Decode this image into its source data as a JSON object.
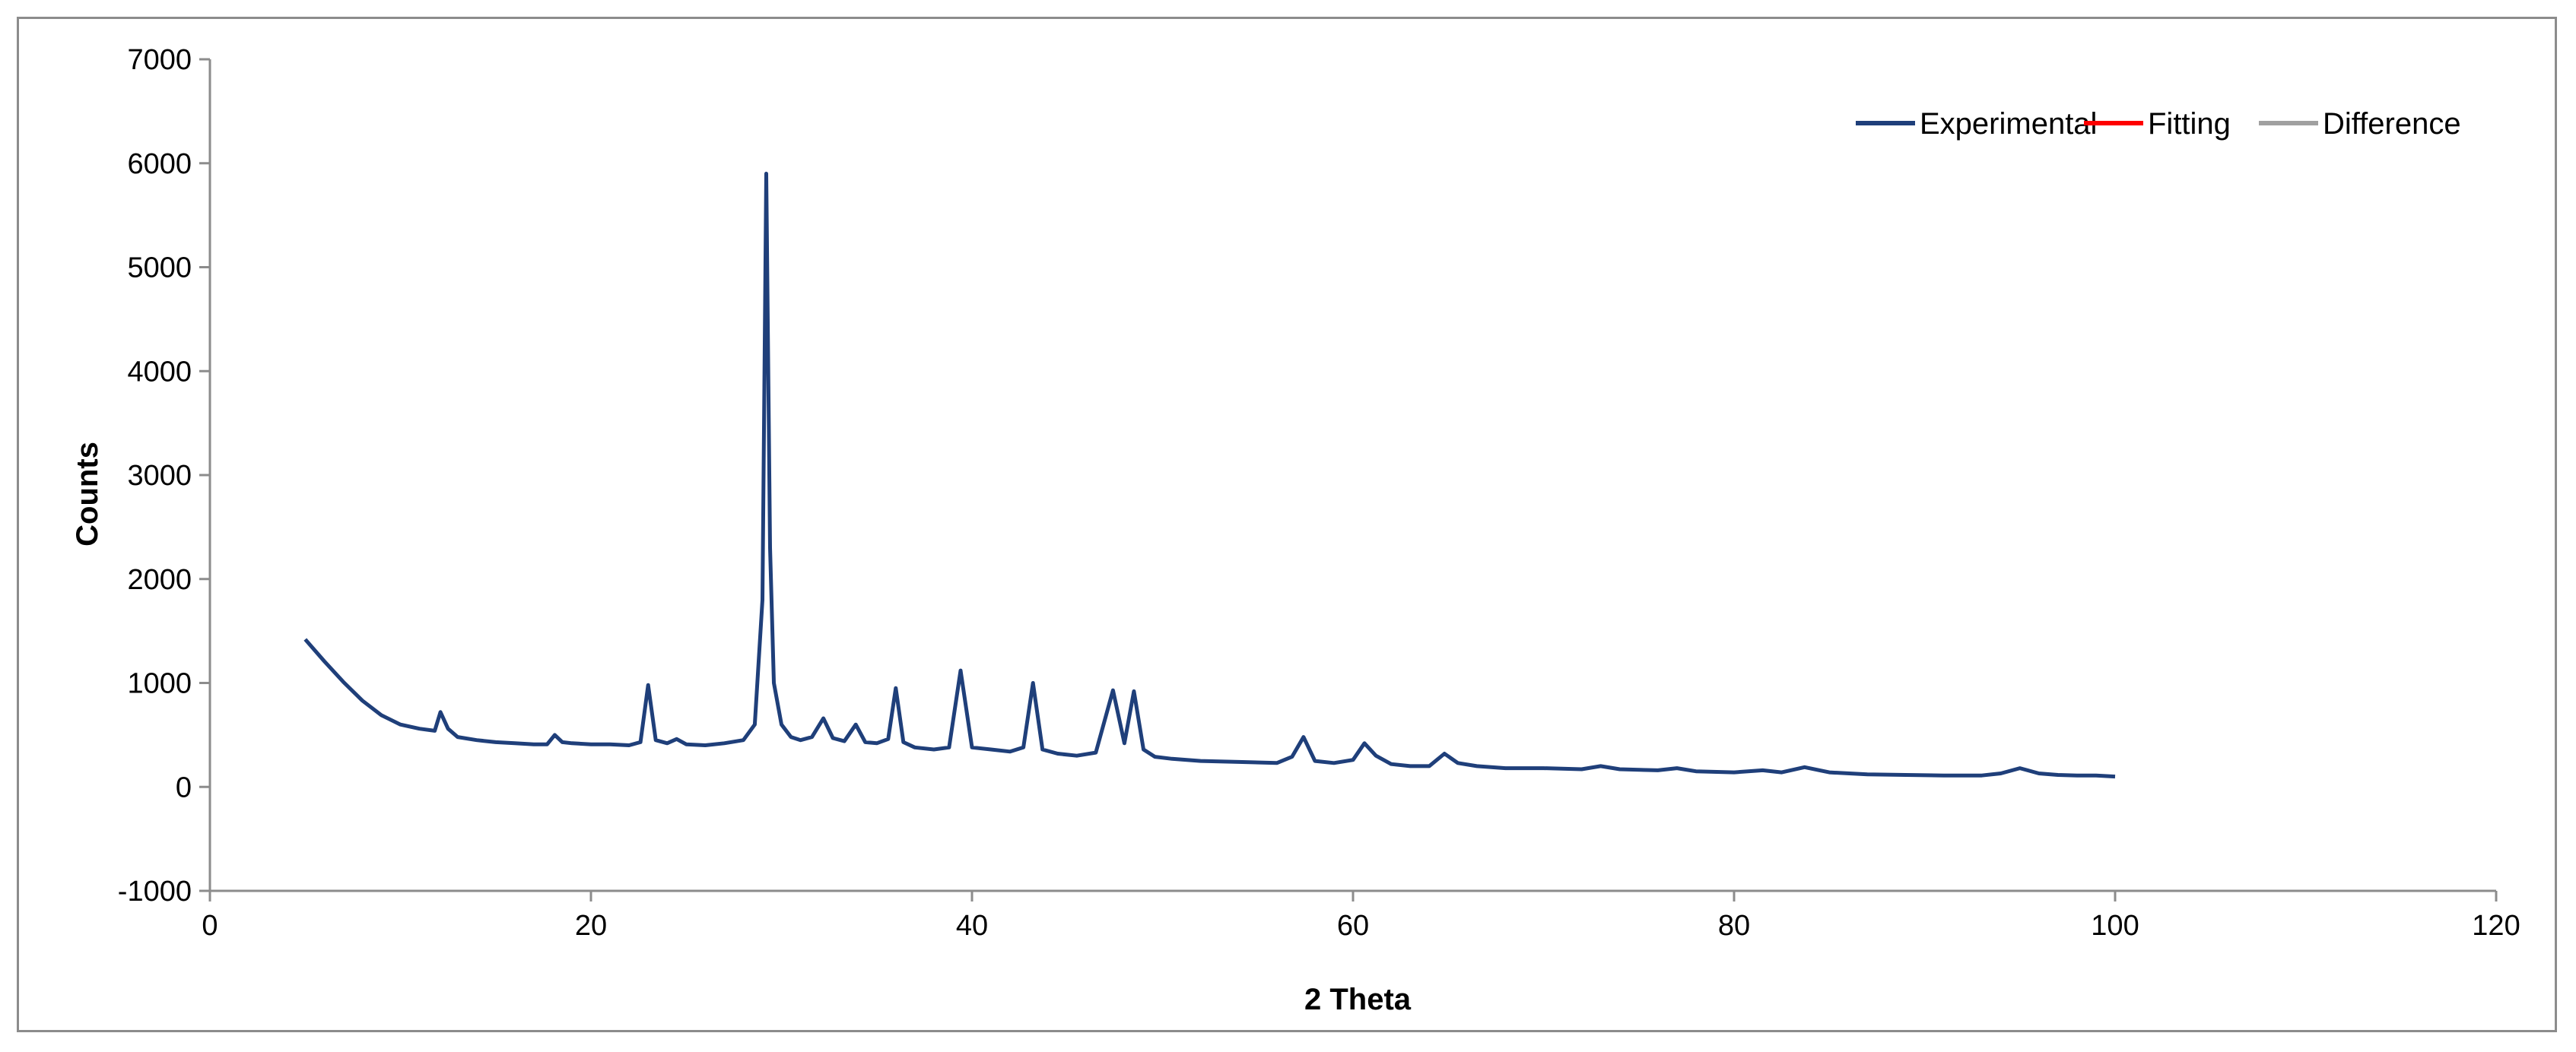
{
  "chart_data": {
    "type": "line",
    "title": "",
    "xlabel": "2 Theta",
    "ylabel": "Counts",
    "xlim": [
      0,
      120
    ],
    "ylim": [
      -1000,
      7000
    ],
    "x_ticks": [
      0,
      20,
      40,
      60,
      80,
      100,
      120
    ],
    "y_ticks": [
      -1000,
      0,
      1000,
      2000,
      3000,
      4000,
      5000,
      6000,
      7000
    ],
    "grid": false,
    "legend_position": "top-right",
    "series": [
      {
        "name": "Experimental",
        "color": "#1f3f7a",
        "x": [
          5.0,
          6.0,
          7.0,
          8.0,
          9.0,
          10.0,
          11.0,
          11.8,
          12.1,
          12.5,
          13.0,
          14.0,
          15.0,
          16.0,
          17.0,
          17.7,
          18.1,
          18.5,
          19.0,
          20.0,
          21.0,
          22.0,
          22.6,
          23.0,
          23.4,
          24.0,
          24.5,
          25.0,
          26.0,
          27.0,
          28.0,
          28.6,
          29.0,
          29.2,
          29.4,
          29.6,
          30.0,
          30.5,
          31.0,
          31.6,
          32.2,
          32.7,
          33.3,
          33.9,
          34.4,
          35.0,
          35.6,
          36.0,
          36.4,
          37.0,
          38.0,
          38.8,
          39.4,
          40.0,
          41.0,
          42.0,
          42.7,
          43.2,
          43.7,
          44.5,
          45.5,
          46.5,
          47.4,
          48.0,
          48.5,
          49.0,
          49.6,
          50.5,
          52.0,
          54.0,
          56.0,
          56.8,
          57.4,
          58.0,
          59.0,
          60.0,
          60.6,
          61.2,
          62.0,
          63.0,
          64.0,
          64.8,
          65.5,
          66.5,
          68.0,
          70.0,
          72.0,
          73.0,
          74.0,
          76.0,
          77.0,
          78.0,
          80.0,
          81.5,
          82.5,
          83.7,
          85.0,
          87.0,
          89.0,
          91.0,
          93.0,
          94.0,
          95.0,
          96.0,
          97.0,
          98.0,
          99.0,
          100.0
        ],
        "values": [
          1420,
          1210,
          1010,
          830,
          690,
          600,
          560,
          540,
          720,
          560,
          480,
          450,
          430,
          420,
          410,
          410,
          500,
          430,
          420,
          410,
          410,
          400,
          430,
          980,
          450,
          420,
          460,
          410,
          400,
          420,
          450,
          600,
          1800,
          5900,
          2300,
          1000,
          600,
          480,
          450,
          480,
          660,
          470,
          440,
          600,
          430,
          420,
          460,
          950,
          430,
          380,
          360,
          380,
          1120,
          380,
          360,
          340,
          380,
          1000,
          360,
          320,
          300,
          330,
          930,
          420,
          920,
          360,
          290,
          270,
          250,
          240,
          230,
          290,
          480,
          250,
          230,
          260,
          420,
          300,
          220,
          200,
          200,
          320,
          230,
          200,
          180,
          180,
          170,
          200,
          170,
          160,
          180,
          150,
          140,
          160,
          140,
          190,
          140,
          120,
          115,
          110,
          110,
          130,
          180,
          130,
          115,
          110,
          110,
          100
        ]
      },
      {
        "name": "Fitting",
        "color": "#ff0000",
        "x": [],
        "values": []
      },
      {
        "name": "Difference",
        "color": "#a0a0a0",
        "x": [],
        "values": []
      }
    ]
  }
}
